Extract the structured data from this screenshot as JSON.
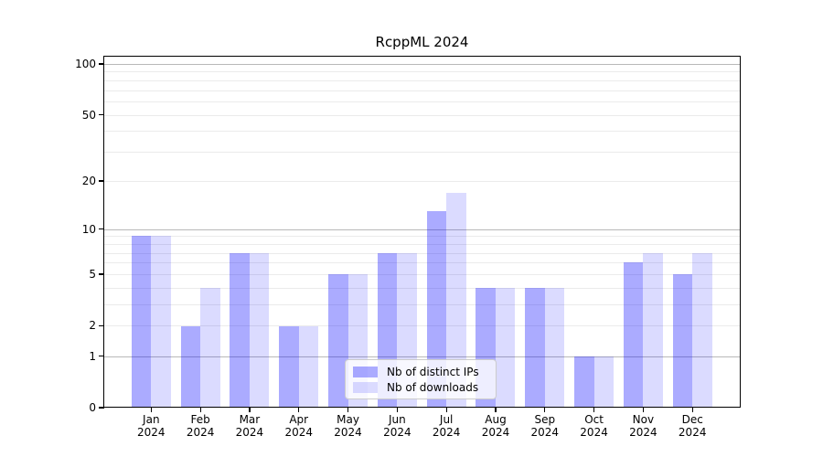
{
  "chart_data": {
    "type": "bar",
    "title": "RcppML 2024",
    "categories": [
      "Jan",
      "Feb",
      "Mar",
      "Apr",
      "May",
      "Jun",
      "Jul",
      "Aug",
      "Sep",
      "Oct",
      "Nov",
      "Dec"
    ],
    "category_year": "2024",
    "series": [
      {
        "name": "Nb of distinct IPs",
        "color": "rgba(0,0,255,0.33)",
        "values": [
          9,
          2,
          7,
          2,
          5,
          7,
          13,
          4,
          4,
          1,
          6,
          5
        ]
      },
      {
        "name": "Nb of downloads",
        "color": "rgba(0,0,255,0.14)",
        "values": [
          9,
          4,
          7,
          2,
          5,
          7,
          17,
          4,
          4,
          1,
          7,
          7
        ]
      }
    ],
    "xlabel": "",
    "ylabel": "",
    "y_scale": "log1p",
    "ylim": [
      0,
      113
    ],
    "y_ticks": [
      0,
      1,
      2,
      5,
      10,
      20,
      50,
      100
    ],
    "y_major_gridlines": [
      1,
      10,
      100
    ],
    "y_minor_gridlines": [
      2,
      3,
      4,
      5,
      6,
      7,
      8,
      9,
      20,
      30,
      40,
      50,
      60,
      70,
      80,
      90
    ],
    "grid": "on",
    "legend": {
      "position": "lower-center",
      "entries": [
        "Nb of distinct IPs",
        "Nb of downloads"
      ]
    },
    "colors": {
      "grid_minor": "#ebebeb",
      "grid_major": "#b9b9b9",
      "axis": "#000000",
      "legend_border": "#cccccc",
      "text": "#000000"
    }
  }
}
